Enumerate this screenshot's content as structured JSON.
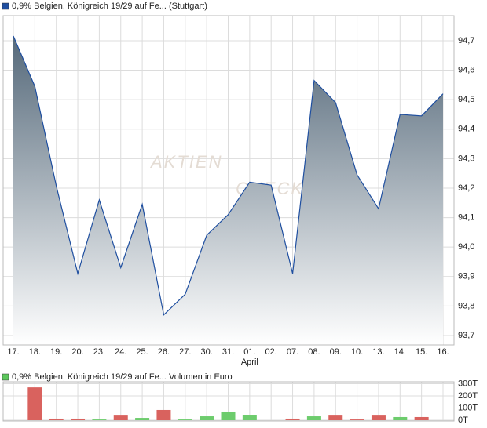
{
  "chart_data": [
    {
      "type": "area",
      "title": "0,9% Belgien, Königreich 19/29 auf Fe... (Stuttgart)",
      "watermark": [
        "AKTIEN",
        "CHECK"
      ],
      "categories": [
        "17.",
        "18.",
        "19.",
        "20.",
        "23.",
        "24.",
        "25.",
        "26.",
        "27.",
        "30.",
        "31.",
        "01.",
        "02.",
        "07.",
        "08.",
        "09.",
        "10.",
        "13.",
        "14.",
        "15.",
        "16."
      ],
      "x_annotation": {
        "text": "April",
        "index": 11
      },
      "values": [
        94.716,
        94.545,
        94.207,
        93.91,
        94.16,
        93.93,
        94.145,
        93.77,
        93.84,
        94.04,
        94.11,
        94.22,
        94.21,
        93.91,
        94.565,
        94.49,
        94.245,
        94.13,
        94.45,
        94.445,
        94.52
      ],
      "color": "#1f4fa0",
      "ylim": [
        93.668,
        94.785
      ],
      "yticks": [
        {
          "value": 93.7,
          "label": "93,7"
        },
        {
          "value": 93.8,
          "label": "93,8"
        },
        {
          "value": 93.9,
          "label": "93,9"
        },
        {
          "value": 94.0,
          "label": "94,0"
        },
        {
          "value": 94.1,
          "label": "94,1"
        },
        {
          "value": 94.2,
          "label": "94,2"
        },
        {
          "value": 94.3,
          "label": "94,3"
        },
        {
          "value": 94.4,
          "label": "94,4"
        },
        {
          "value": 94.5,
          "label": "94,5"
        },
        {
          "value": 94.6,
          "label": "94,6"
        },
        {
          "value": 94.7,
          "label": "94,7"
        }
      ],
      "grid": true
    },
    {
      "type": "bar",
      "title": "0,9% Belgien, Königreich 19/29 auf Fe... Volumen in Euro",
      "legend_color": "#5cc85c",
      "values": [
        0,
        270000,
        13000,
        13000,
        6000,
        38000,
        19000,
        84000,
        6000,
        32000,
        71000,
        45000,
        0,
        13000,
        32000,
        38000,
        6000,
        38000,
        26000,
        26000,
        0
      ],
      "colors": [
        "#d9625e",
        "#d9625e",
        "#d9625e",
        "#d9625e",
        "#6dcc6d",
        "#d9625e",
        "#6dcc6d",
        "#d9625e",
        "#6dcc6d",
        "#6dcc6d",
        "#6dcc6d",
        "#6dcc6d",
        "#6dcc6d",
        "#d9625e",
        "#6dcc6d",
        "#d9625e",
        "#d9625e",
        "#d9625e",
        "#6dcc6d",
        "#d9625e",
        "#6dcc6d"
      ],
      "ylim": [
        0,
        316000
      ],
      "yticks": [
        {
          "value": 0,
          "label": "0T"
        },
        {
          "value": 100000,
          "label": "100T"
        },
        {
          "value": 200000,
          "label": "200T"
        },
        {
          "value": 300000,
          "label": "300T"
        }
      ],
      "grid": true
    }
  ]
}
